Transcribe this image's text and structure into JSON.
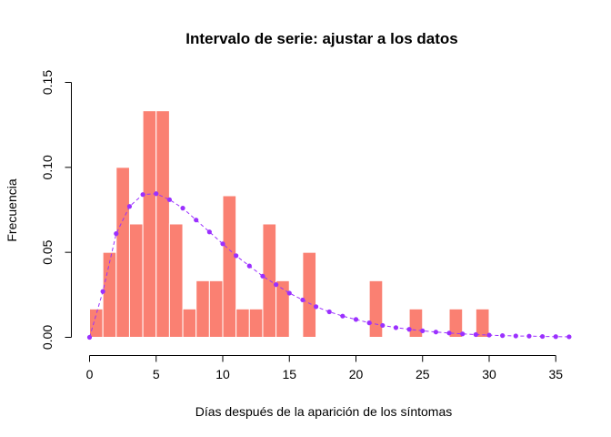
{
  "chart_data": {
    "type": "bar",
    "title": "Intervalo de serie: ajustar a los datos",
    "xlabel": "Días después de la aparición de los síntomas",
    "ylabel": "Frecuencia",
    "xlim": [
      0,
      36
    ],
    "ylim": [
      0,
      0.15
    ],
    "xticks": [
      "0",
      "5",
      "10",
      "15",
      "20",
      "25",
      "30",
      "35"
    ],
    "yticks": [
      "0.00",
      "0.05",
      "0.10",
      "0.15"
    ],
    "bar_color": "#FA8072",
    "fit_color": "#9B30FF",
    "grid": false,
    "histogram": {
      "bin_starts": [
        0,
        1,
        2,
        3,
        4,
        5,
        6,
        7,
        8,
        9,
        10,
        11,
        12,
        13,
        14,
        15,
        16,
        17,
        18,
        19,
        20,
        21,
        22,
        23,
        24,
        25,
        26,
        27,
        28,
        29
      ],
      "values": [
        0.0167,
        0.05,
        0.1,
        0.0667,
        0.1333,
        0.1333,
        0.0667,
        0.0167,
        0.0333,
        0.0333,
        0.0833,
        0.0167,
        0.0167,
        0.0667,
        0.0333,
        0,
        0.05,
        0,
        0,
        0,
        0,
        0.0333,
        0,
        0,
        0.0167,
        0,
        0,
        0.0167,
        0,
        0.0167
      ]
    },
    "fit_series": {
      "x": [
        0,
        1,
        2,
        3,
        4,
        5,
        6,
        7,
        8,
        9,
        10,
        11,
        12,
        13,
        14,
        15,
        16,
        17,
        18,
        19,
        20,
        21,
        22,
        23,
        24,
        25,
        26,
        27,
        28,
        29,
        30,
        31,
        32,
        33,
        34,
        35,
        36
      ],
      "y": [
        0.0,
        0.027,
        0.061,
        0.077,
        0.084,
        0.0845,
        0.081,
        0.076,
        0.069,
        0.062,
        0.055,
        0.048,
        0.042,
        0.036,
        0.031,
        0.026,
        0.022,
        0.018,
        0.015,
        0.0125,
        0.0105,
        0.0085,
        0.007,
        0.0057,
        0.0047,
        0.0038,
        0.0031,
        0.0025,
        0.002,
        0.0016,
        0.0013,
        0.001,
        0.0008,
        0.0007,
        0.0005,
        0.0004,
        0.0003
      ]
    }
  }
}
